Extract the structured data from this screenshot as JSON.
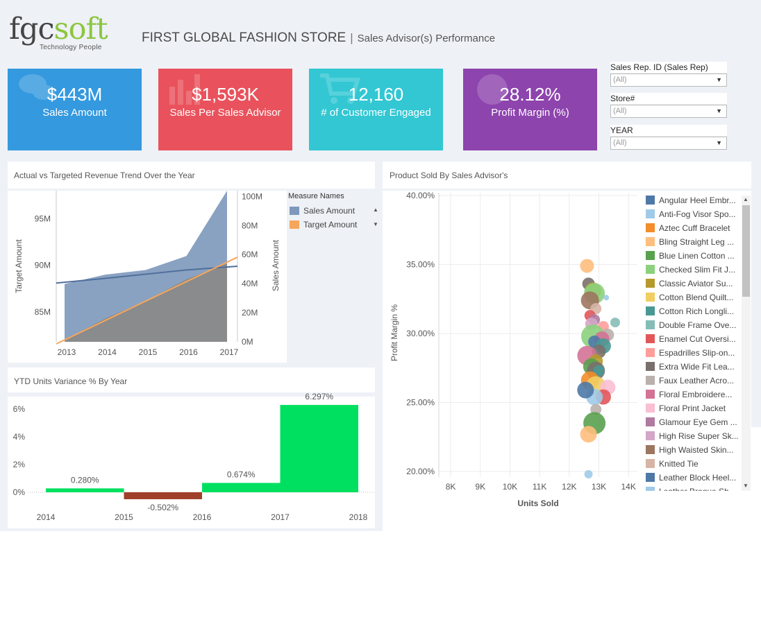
{
  "brand": {
    "logo_main": "fgc",
    "logo_accent": "soft",
    "logo_tagline": "Technology People"
  },
  "header": {
    "title": "FIRST GLOBAL FASHION STORE",
    "separator": "|",
    "subtitle": "Sales Advisor(s) Performance"
  },
  "kpis": [
    {
      "value": "$443M",
      "label": "Sales Amount",
      "color": "#3499df",
      "icon": "chat-bubbles-icon"
    },
    {
      "value": "$1,593K",
      "label": "Sales Per Sales Advisor",
      "color": "#e9525c",
      "icon": "bar-chart-icon"
    },
    {
      "value": "12,160",
      "label": "# of Customer Engaged",
      "color": "#32c7d3",
      "icon": "shopping-cart-icon"
    },
    {
      "value": "28.12%",
      "label": "Profit Margin (%)",
      "color": "#8d44ad",
      "icon": "globe-icon"
    }
  ],
  "filters": [
    {
      "label": "Sales Rep. ID (Sales Rep)",
      "value": "(All)"
    },
    {
      "label": "Store#",
      "value": "(All)"
    },
    {
      "label": "YEAR",
      "value": "(All)"
    }
  ],
  "revenue_trend": {
    "title": "Actual vs Targeted Revenue Trend Over the Year",
    "legend_title": "Measure Names",
    "colors": {
      "sales": "#7d98bb",
      "target": "#f6a65c",
      "overlap": "#8a8a8a",
      "sales_line": "#4f6f9b"
    }
  },
  "ytd_variance": {
    "title": "YTD Units Variance % By Year",
    "colors": {
      "positive": "#00e060",
      "negative": "#a0402a"
    }
  },
  "scatter": {
    "title": "Product Sold By Sales Advisor's",
    "legend": [
      {
        "name": "Angular Heel Embr...",
        "color": "#4e79a7"
      },
      {
        "name": "Anti-Fog Visor Spo...",
        "color": "#a0cbe8"
      },
      {
        "name": "Aztec Cuff Bracelet",
        "color": "#f28e2b"
      },
      {
        "name": "Bling Straight Leg ...",
        "color": "#ffbe7d"
      },
      {
        "name": "Blue Linen Cotton ...",
        "color": "#59a14f"
      },
      {
        "name": "Checked Slim Fit J...",
        "color": "#8cd17d"
      },
      {
        "name": "Classic Aviator Su...",
        "color": "#b6992d"
      },
      {
        "name": "Cotton Blend Quilt...",
        "color": "#f1ce63"
      },
      {
        "name": "Cotton Rich Longli...",
        "color": "#499894"
      },
      {
        "name": "Double Frame Ove...",
        "color": "#86bcb6"
      },
      {
        "name": "Enamel Cut Oversi...",
        "color": "#e15759"
      },
      {
        "name": "Espadrilles Slip-on...",
        "color": "#ff9d9a"
      },
      {
        "name": "Extra Wide Fit Lea...",
        "color": "#79706e"
      },
      {
        "name": "Faux Leather Acro...",
        "color": "#bab0ac"
      },
      {
        "name": "Floral Embroidere...",
        "color": "#d37295"
      },
      {
        "name": "Floral Print Jacket",
        "color": "#fabfd2"
      },
      {
        "name": "Glamour Eye Gem ...",
        "color": "#b07aa1"
      },
      {
        "name": "High Rise Super Sk...",
        "color": "#d4a6c8"
      },
      {
        "name": "High Waisted Skin...",
        "color": "#9d7660"
      },
      {
        "name": "Knitted Tie",
        "color": "#d7b5a6"
      },
      {
        "name": "Leather Block Heel...",
        "color": "#4e79a7"
      },
      {
        "name": "Leather Brogue Sh...",
        "color": "#a0cbe8"
      }
    ]
  },
  "chart_data": [
    {
      "type": "area",
      "title": "Actual vs Targeted Revenue Trend Over the Year",
      "x": [
        2013,
        2014,
        2015,
        2016,
        2017
      ],
      "series": [
        {
          "name": "Sales Amount",
          "axis": "right",
          "values": [
            88,
            89,
            89.5,
            91,
            98
          ]
        },
        {
          "name": "Target Amount",
          "axis": "left",
          "values": [
            82,
            84.3,
            86.2,
            88.5,
            90.2
          ]
        }
      ],
      "xlabel": "",
      "ylabel_left": "Target Amount",
      "ylabel_right": "Sales Amount",
      "left_ticks": [
        "85M",
        "90M",
        "95M"
      ],
      "left_range": [
        81.8,
        98
      ],
      "right_ticks": [
        "0M",
        "20M",
        "40M",
        "60M",
        "80M",
        "100M"
      ],
      "right_range": [
        0,
        104
      ]
    },
    {
      "type": "bar",
      "title": "YTD Units Variance % By Year",
      "categories": [
        "2014",
        "2015",
        "2016",
        "2017"
      ],
      "values": [
        0.28,
        -0.502,
        0.674,
        6.297
      ],
      "data_labels": [
        "0.280%",
        "-0.502%",
        "0.674%",
        "6.297%"
      ],
      "x_ticks": [
        "2014",
        "2015",
        "2016",
        "2017",
        "2018"
      ],
      "y_ticks": [
        "0%",
        "2%",
        "4%",
        "6%"
      ],
      "ylim": [
        -1,
        6.6
      ]
    },
    {
      "type": "scatter",
      "title": "Product Sold By Sales Advisor's",
      "xlabel": "Units Sold",
      "ylabel": "Profit Margin %",
      "x_ticks": [
        "8K",
        "9K",
        "10K",
        "11K",
        "12K",
        "13K",
        "14K"
      ],
      "y_ticks": [
        "20.00%",
        "25.00%",
        "30.00%",
        "35.00%",
        "40.00%"
      ],
      "xlim": [
        7600,
        14300
      ],
      "ylim": [
        19.6,
        40.2
      ],
      "points": [
        {
          "x": 12600,
          "y": 34.9,
          "size": 10,
          "color": "#ffbe7d"
        },
        {
          "x": 12650,
          "y": 33.6,
          "size": 9,
          "color": "#79706e"
        },
        {
          "x": 12800,
          "y": 33.1,
          "size": 12,
          "color": "#b6992d"
        },
        {
          "x": 12850,
          "y": 32.9,
          "size": 15,
          "color": "#8cd17d"
        },
        {
          "x": 12700,
          "y": 32.4,
          "size": 13,
          "color": "#9d7660"
        },
        {
          "x": 13250,
          "y": 32.6,
          "size": 4,
          "color": "#a0cbe8"
        },
        {
          "x": 12900,
          "y": 31.8,
          "size": 8,
          "color": "#d7b5a6"
        },
        {
          "x": 12700,
          "y": 31.3,
          "size": 8,
          "color": "#e15759"
        },
        {
          "x": 12850,
          "y": 31.0,
          "size": 8,
          "color": "#b07aa1"
        },
        {
          "x": 12750,
          "y": 30.7,
          "size": 9,
          "color": "#d4a6c8"
        },
        {
          "x": 13550,
          "y": 30.8,
          "size": 7,
          "color": "#86bcb6"
        },
        {
          "x": 13150,
          "y": 30.5,
          "size": 8,
          "color": "#ff9d9a"
        },
        {
          "x": 12800,
          "y": 29.8,
          "size": 17,
          "color": "#8cd17d"
        },
        {
          "x": 13300,
          "y": 29.9,
          "size": 9,
          "color": "#bab0ac"
        },
        {
          "x": 13100,
          "y": 29.6,
          "size": 11,
          "color": "#d37295"
        },
        {
          "x": 12850,
          "y": 29.4,
          "size": 9,
          "color": "#4e79a7"
        },
        {
          "x": 13150,
          "y": 29.1,
          "size": 11,
          "color": "#499894"
        },
        {
          "x": 13000,
          "y": 28.7,
          "size": 10,
          "color": "#79706e"
        },
        {
          "x": 12600,
          "y": 28.4,
          "size": 14,
          "color": "#d37295"
        },
        {
          "x": 12900,
          "y": 28.0,
          "size": 10,
          "color": "#b6992d"
        },
        {
          "x": 12750,
          "y": 27.6,
          "size": 12,
          "color": "#59a14f"
        },
        {
          "x": 12900,
          "y": 27.3,
          "size": 13,
          "color": "#79706e"
        },
        {
          "x": 13000,
          "y": 27.3,
          "size": 8,
          "color": "#499894"
        },
        {
          "x": 12700,
          "y": 26.6,
          "size": 13,
          "color": "#f28e2b"
        },
        {
          "x": 12900,
          "y": 26.2,
          "size": 14,
          "color": "#f1ce63"
        },
        {
          "x": 13300,
          "y": 26.1,
          "size": 11,
          "color": "#fabfd2"
        },
        {
          "x": 13150,
          "y": 25.4,
          "size": 11,
          "color": "#e15759"
        },
        {
          "x": 12850,
          "y": 25.4,
          "size": 12,
          "color": "#a0cbe8"
        },
        {
          "x": 12550,
          "y": 25.9,
          "size": 12,
          "color": "#4e79a7"
        },
        {
          "x": 12900,
          "y": 24.5,
          "size": 8,
          "color": "#bab0ac"
        },
        {
          "x": 12850,
          "y": 23.5,
          "size": 16,
          "color": "#59a14f"
        },
        {
          "x": 12650,
          "y": 22.7,
          "size": 12,
          "color": "#ffbe7d"
        },
        {
          "x": 12650,
          "y": 19.8,
          "size": 6,
          "color": "#a0cbe8"
        }
      ]
    }
  ]
}
